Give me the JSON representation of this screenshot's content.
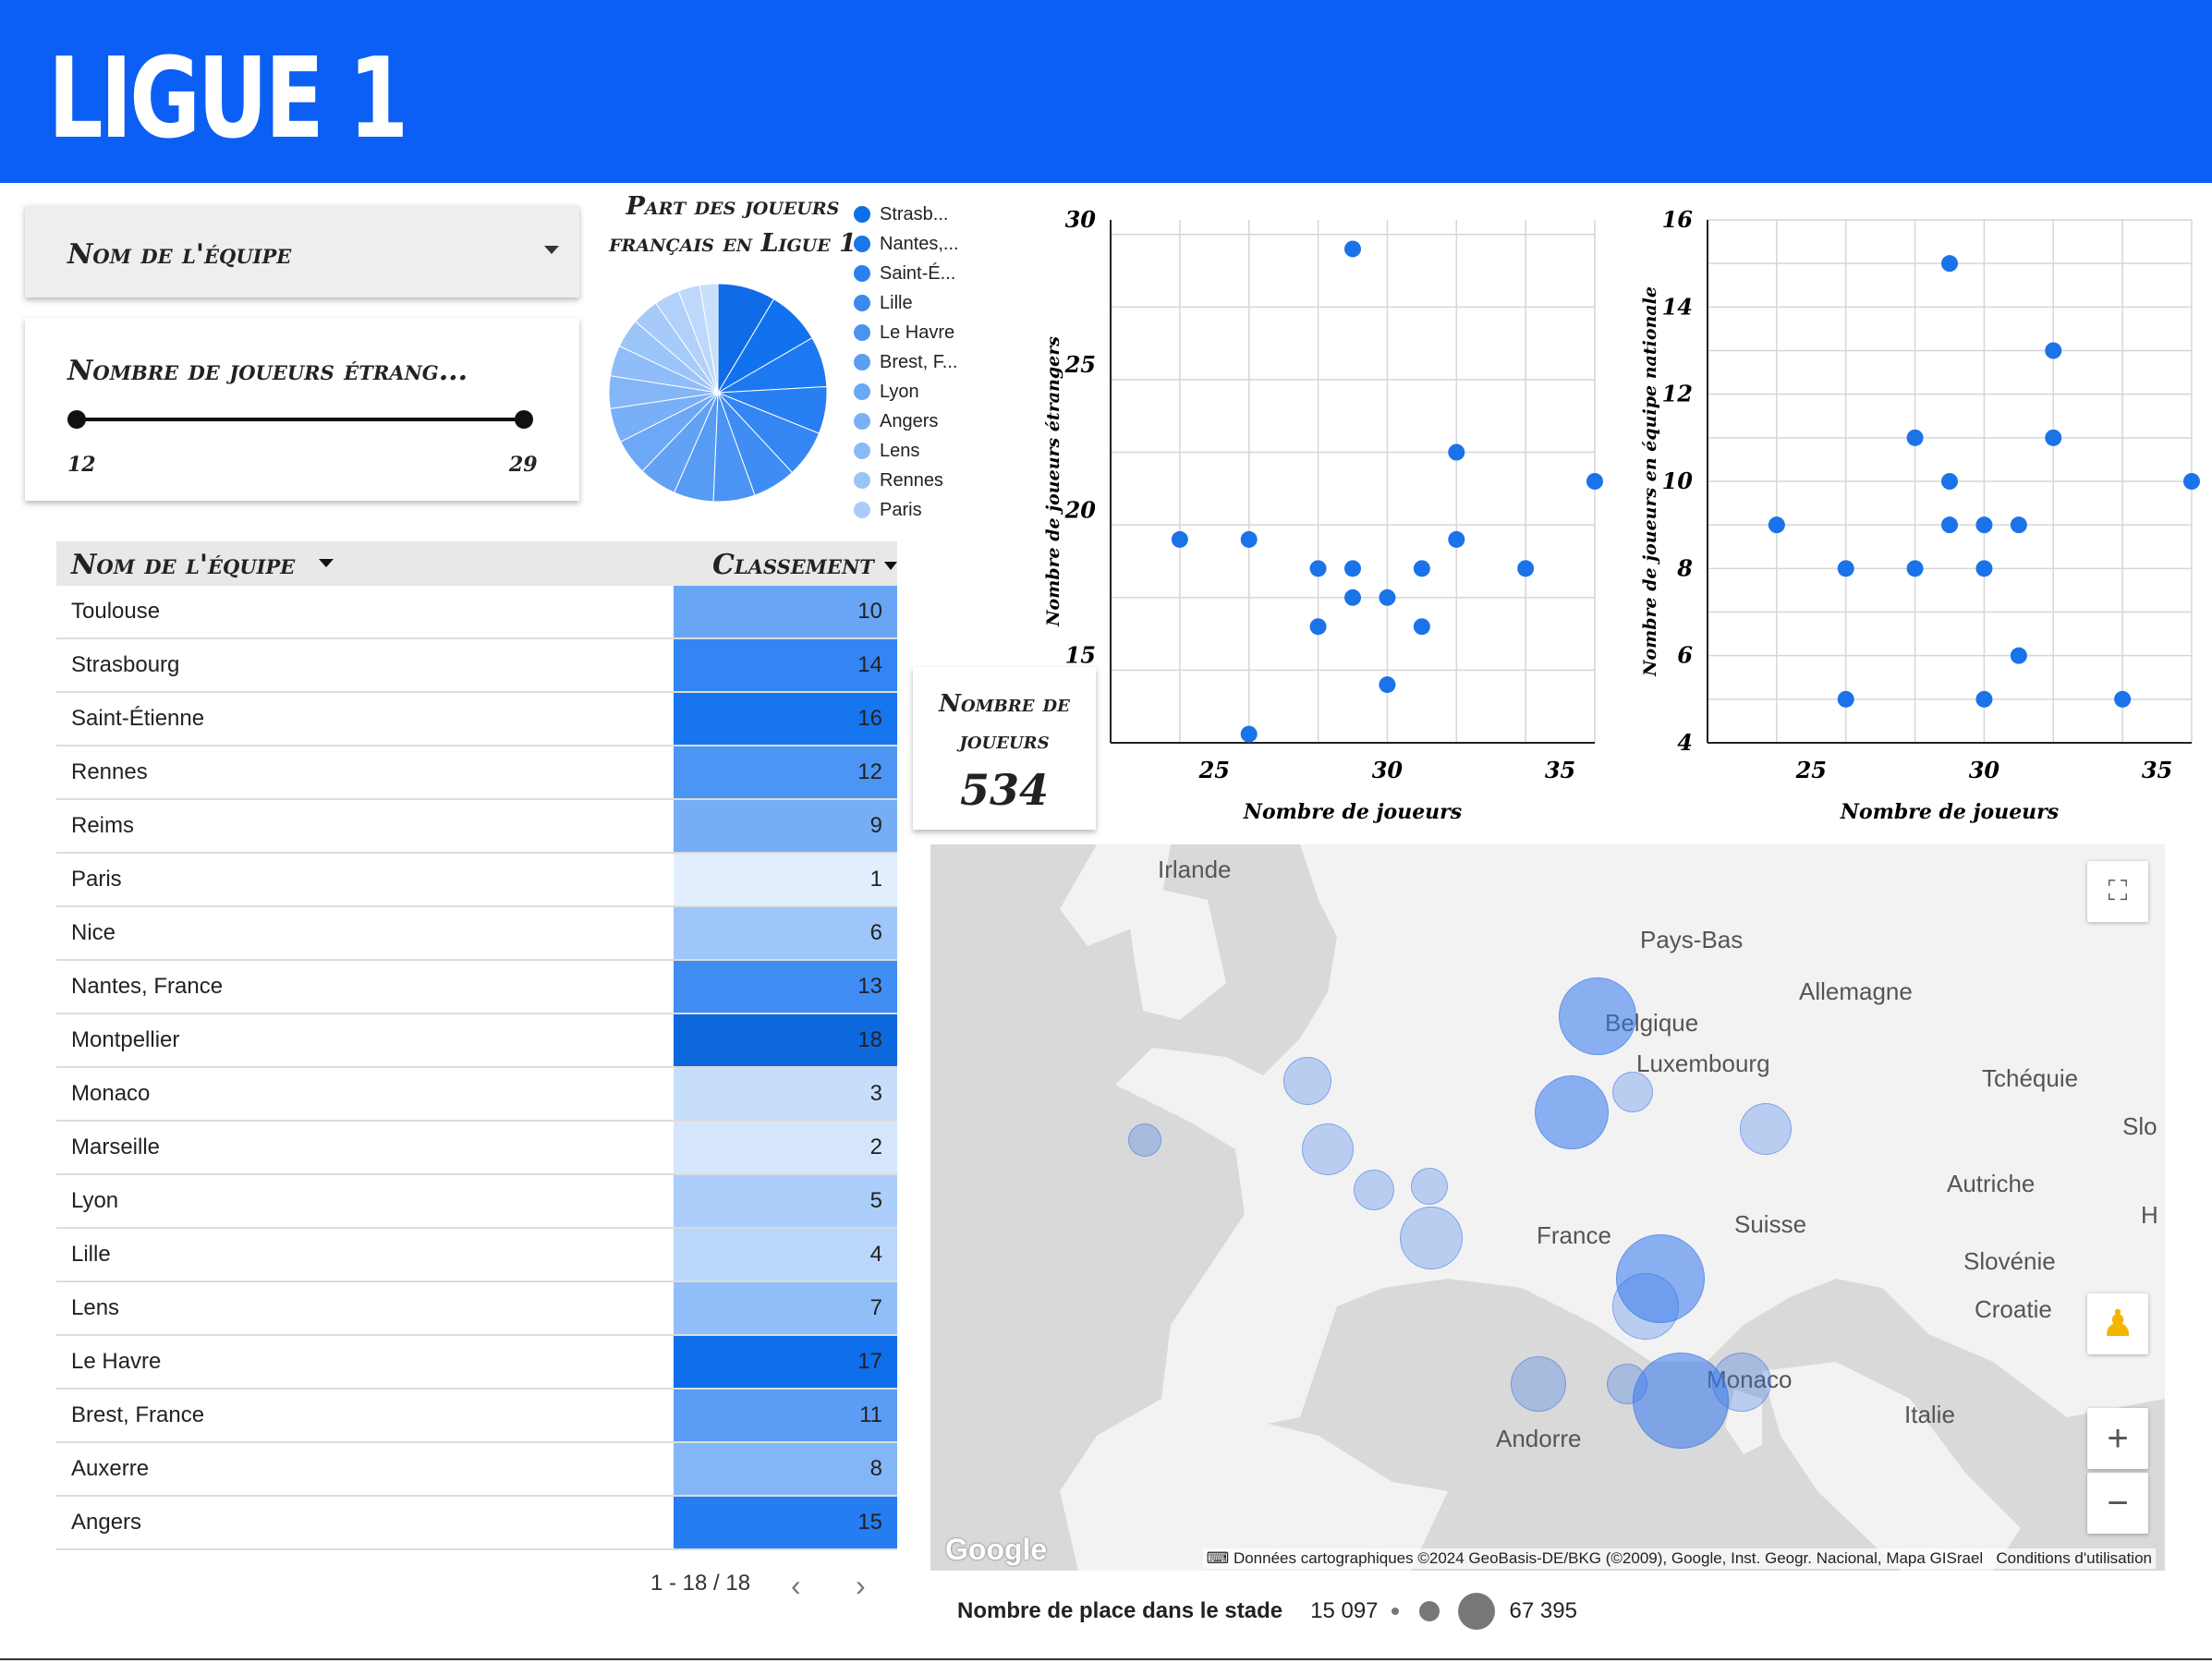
{
  "header": {
    "logo_text": "LIGUE 1"
  },
  "filters": {
    "team_label": "Nom de l'équipe",
    "foreign_label": "Nombre de joueurs étrang...",
    "slider_min": "12",
    "slider_max": "29"
  },
  "pie": {
    "title": "Part des joueurs français en Ligue 1",
    "legend": [
      "Strasb...",
      "Nantes,...",
      "Saint-É...",
      "Lille",
      "Le Havre",
      "Brest, F...",
      "Lyon",
      "Angers",
      "Lens",
      "Rennes",
      "Paris"
    ]
  },
  "table": {
    "col_name": "Nom de l'équipe",
    "col_rank": "Classement",
    "rows": [
      {
        "name": "Toulouse",
        "rank": "10"
      },
      {
        "name": "Strasbourg",
        "rank": "14"
      },
      {
        "name": "Saint-Étienne",
        "rank": "16"
      },
      {
        "name": "Rennes",
        "rank": "12"
      },
      {
        "name": "Reims",
        "rank": "9"
      },
      {
        "name": "Paris",
        "rank": "1"
      },
      {
        "name": "Nice",
        "rank": "6"
      },
      {
        "name": "Nantes, France",
        "rank": "13"
      },
      {
        "name": "Montpellier",
        "rank": "18"
      },
      {
        "name": "Monaco",
        "rank": "3"
      },
      {
        "name": "Marseille",
        "rank": "2"
      },
      {
        "name": "Lyon",
        "rank": "5"
      },
      {
        "name": "Lille",
        "rank": "4"
      },
      {
        "name": "Lens",
        "rank": "7"
      },
      {
        "name": "Le Havre",
        "rank": "17"
      },
      {
        "name": "Brest, France",
        "rank": "11"
      },
      {
        "name": "Auxerre",
        "rank": "8"
      },
      {
        "name": "Angers",
        "rank": "15"
      }
    ],
    "pager": "1 - 18 / 18"
  },
  "kpi": {
    "label": "Nombre de joueurs",
    "value": "534"
  },
  "chart_data": [
    {
      "type": "scatter",
      "xlabel": "Nombre de joueurs",
      "ylabel": "Nombre de joueurs étrangers",
      "xlim": [
        22,
        36
      ],
      "ylim": [
        12,
        30
      ],
      "xticks": [
        "25",
        "30",
        "35"
      ],
      "yticks": [
        "15",
        "20",
        "25",
        "30"
      ],
      "grid": true,
      "points": [
        [
          24,
          19
        ],
        [
          26,
          19
        ],
        [
          26,
          12.3
        ],
        [
          28,
          18
        ],
        [
          28,
          16
        ],
        [
          29,
          29
        ],
        [
          29,
          18
        ],
        [
          29,
          17
        ],
        [
          30,
          17
        ],
        [
          30,
          14
        ],
        [
          31,
          18
        ],
        [
          31,
          16
        ],
        [
          32,
          22
        ],
        [
          32,
          19
        ],
        [
          34,
          18
        ],
        [
          36,
          21
        ]
      ]
    },
    {
      "type": "scatter",
      "xlabel": "Nombre de joueurs",
      "ylabel": "Nombre de joueurs en équipe nationale",
      "xlim": [
        22,
        36
      ],
      "ylim": [
        4,
        16
      ],
      "xticks": [
        "25",
        "30",
        "35"
      ],
      "yticks": [
        "4",
        "6",
        "8",
        "10",
        "12",
        "14",
        "16"
      ],
      "grid": true,
      "points": [
        [
          24,
          9
        ],
        [
          26,
          8
        ],
        [
          26,
          5
        ],
        [
          28,
          11
        ],
        [
          28,
          8
        ],
        [
          29,
          15
        ],
        [
          29,
          10
        ],
        [
          29,
          9
        ],
        [
          30,
          9
        ],
        [
          30,
          8
        ],
        [
          30,
          5
        ],
        [
          31,
          9
        ],
        [
          31,
          6
        ],
        [
          32,
          13
        ],
        [
          32,
          11
        ],
        [
          34,
          5
        ],
        [
          36,
          10
        ]
      ]
    }
  ],
  "map": {
    "labels": [
      "Irlande",
      "Pays-Bas",
      "Allemagne",
      "Belgique",
      "Luxembourg",
      "Tchéquie",
      "Slo",
      "Autriche",
      "H",
      "France",
      "Suisse",
      "Slovénie",
      "Croatie",
      "Monaco",
      "Andorre",
      "Italie"
    ],
    "attribution": "Données cartographiques ©2024 GeoBasis-DE/BKG (©2009), Google, Inst. Geogr. Nacional, Mapa GISrael",
    "terms": "Conditions d'utilisation",
    "google": "Google"
  },
  "size_legend": {
    "label": "Nombre de place dans le stade",
    "min": "15 097",
    "max": "67 395"
  },
  "colors": {
    "header": "#0b5ff4",
    "point": "#1a73e8"
  }
}
